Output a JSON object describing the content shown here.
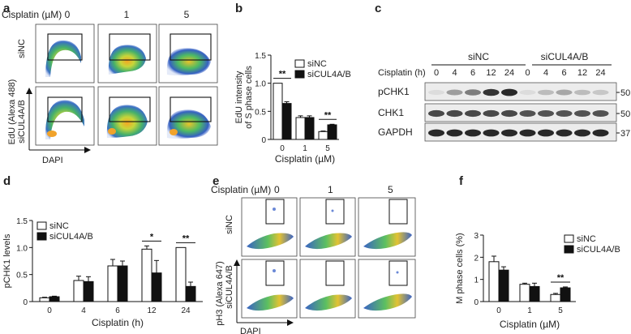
{
  "figure": {
    "panel_labels": [
      "a",
      "b",
      "c",
      "d",
      "e",
      "f"
    ]
  },
  "panel_a": {
    "condition_label": "Cisplatin (µM)",
    "conditions": [
      "0",
      "1",
      "5"
    ],
    "rows": [
      "siNC",
      "siCUL4A/B"
    ],
    "y_axis": "EdU (Alexa 488)",
    "x_axis": "DAPI"
  },
  "panel_c": {
    "condition_label": "Cisplatin (h)",
    "groups": [
      "siNC",
      "siCUL4A/B"
    ],
    "timepoints": [
      "0",
      "4",
      "6",
      "12",
      "24",
      "0",
      "4",
      "6",
      "12",
      "24"
    ],
    "bands": [
      {
        "name": "pCHK1",
        "size": "50",
        "intensity": [
          0.05,
          0.35,
          0.5,
          0.85,
          0.9,
          0.05,
          0.2,
          0.3,
          0.2,
          0.15
        ]
      },
      {
        "name": "CHK1",
        "size": "50",
        "intensity": [
          0.75,
          0.75,
          0.75,
          0.75,
          0.75,
          0.7,
          0.7,
          0.7,
          0.7,
          0.7
        ]
      },
      {
        "name": "GAPDH",
        "size": "37",
        "intensity": [
          0.9,
          0.9,
          0.9,
          0.9,
          0.9,
          0.9,
          0.9,
          0.9,
          0.9,
          0.9
        ]
      }
    ]
  },
  "panel_e": {
    "condition_label": "Cisplatin (µM)",
    "conditions": [
      "0",
      "1",
      "5"
    ],
    "rows": [
      "siNC",
      "siCUL4A/B"
    ],
    "y_axis": "pH3 (Alexa 647)",
    "x_axis": "DAPI"
  },
  "chart_data": [
    {
      "id": "b",
      "type": "bar",
      "categories": [
        "0",
        "1",
        "5"
      ],
      "series": [
        {
          "name": "siNC",
          "values": [
            1.0,
            0.39,
            0.14
          ],
          "errors": [
            0.0,
            0.03,
            0.01
          ],
          "color": "#ffffff"
        },
        {
          "name": "siCUL4A/B",
          "values": [
            0.64,
            0.39,
            0.26
          ],
          "errors": [
            0.03,
            0.03,
            0.01
          ],
          "color": "#111111"
        }
      ],
      "xlabel": "Cisplatin  (µM)",
      "ylabel_lines": [
        "EdU intensity",
        "of S phase cells"
      ],
      "yticks": [
        "0",
        "0.5",
        "1.0",
        "1.5"
      ],
      "ylim": [
        0,
        1.5
      ],
      "significance": [
        {
          "category": "0",
          "label": "**"
        },
        {
          "category": "5",
          "label": "**"
        }
      ]
    },
    {
      "id": "d",
      "type": "bar",
      "categories": [
        "0",
        "4",
        "6",
        "12",
        "24"
      ],
      "series": [
        {
          "name": "siNC",
          "values": [
            0.07,
            0.39,
            0.66,
            0.97,
            1.0
          ],
          "errors": [
            0.01,
            0.08,
            0.12,
            0.06,
            0.0
          ],
          "color": "#ffffff"
        },
        {
          "name": "siCUL4A/B",
          "values": [
            0.09,
            0.37,
            0.66,
            0.53,
            0.28
          ],
          "errors": [
            0.01,
            0.09,
            0.09,
            0.23,
            0.08
          ],
          "color": "#111111"
        }
      ],
      "xlabel": "Cisplatin (h)",
      "ylabel_lines": [
        "pCHK1 levels"
      ],
      "yticks": [
        "0",
        "0.5",
        "1.0",
        "1.5"
      ],
      "ylim": [
        0,
        1.5
      ],
      "significance": [
        {
          "category": "12",
          "label": "*"
        },
        {
          "category": "24",
          "label": "**"
        }
      ]
    },
    {
      "id": "f",
      "type": "bar",
      "categories": [
        "0",
        "1",
        "5"
      ],
      "series": [
        {
          "name": "siNC",
          "values": [
            1.8,
            0.78,
            0.32
          ],
          "errors": [
            0.25,
            0.05,
            0.05
          ],
          "color": "#ffffff"
        },
        {
          "name": "siCUL4A/B",
          "values": [
            1.42,
            0.68,
            0.62
          ],
          "errors": [
            0.15,
            0.15,
            0.04
          ],
          "color": "#111111"
        }
      ],
      "xlabel": "Cisplatin (µM)",
      "ylabel_lines": [
        "M phase cells (%)"
      ],
      "yticks": [
        "0",
        "1",
        "2",
        "3"
      ],
      "ylim": [
        0,
        3
      ],
      "significance": [
        {
          "category": "5",
          "label": "**"
        }
      ]
    }
  ]
}
